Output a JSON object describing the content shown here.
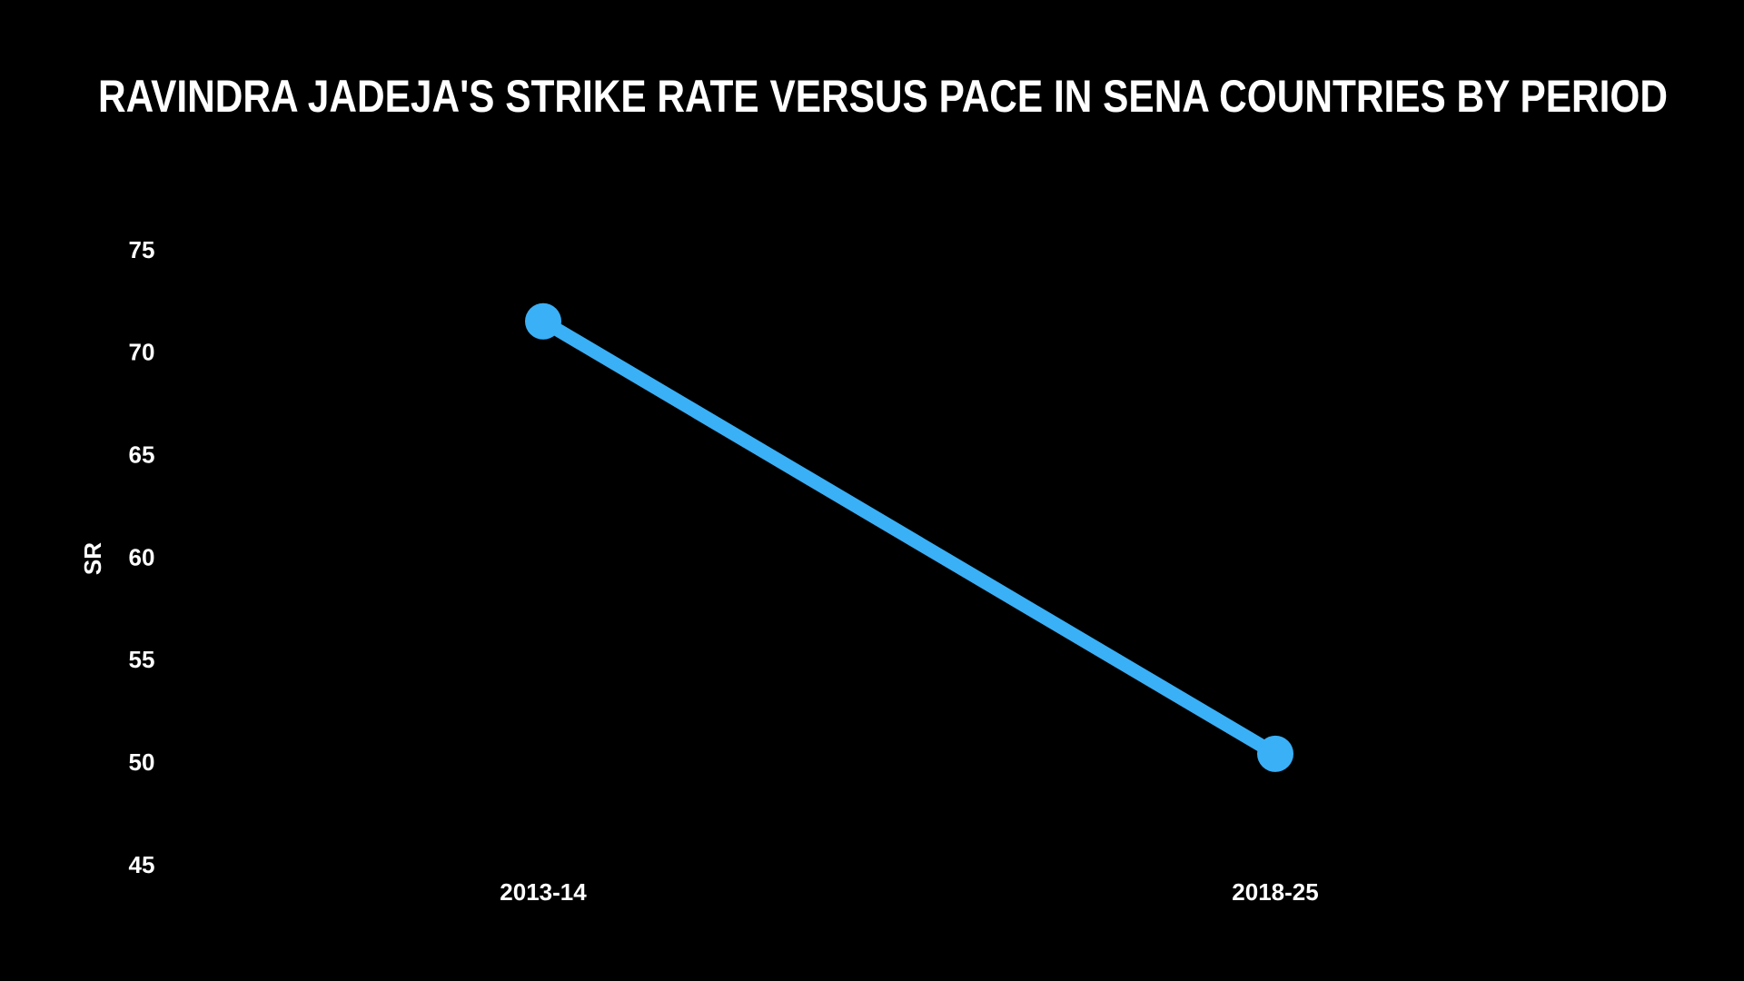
{
  "chart_data": {
    "type": "line",
    "title": "RAVINDRA JADEJA'S STRIKE RATE VERSUS PACE IN SENA COUNTRIES BY PERIOD",
    "y_label": "SR",
    "categories": [
      "2013-14",
      "2018-25"
    ],
    "series": [
      {
        "name": "SR",
        "color": "#3ab0f6",
        "values": [
          71.6,
          50.5
        ]
      }
    ],
    "ylim": [
      45,
      75
    ],
    "yticks": [
      45,
      50,
      55,
      60,
      65,
      70,
      75
    ],
    "grid": false
  }
}
